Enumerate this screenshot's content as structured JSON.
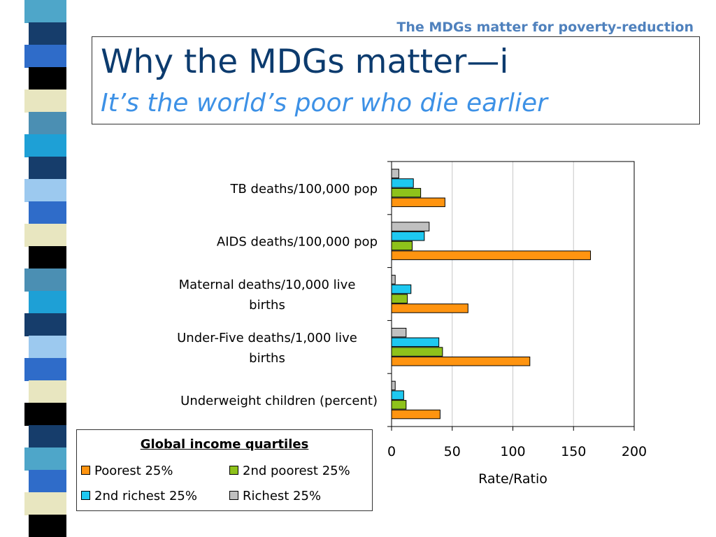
{
  "header": "The MDGs matter for poverty-reduction",
  "title": "Why the MDGs matter—i",
  "subtitle": "It’s the world’s poor who die earlier",
  "colors": {
    "stripe": [
      "#4ea6c9",
      "#163d6b",
      "#2f6cc9",
      "#000000",
      "#e8e6c0",
      "#4b8fb3",
      "#1ea0d6",
      "#163d6b",
      "#9cc9ef",
      "#2f6cc9",
      "#e8e6c0",
      "#000000",
      "#4b8fb3",
      "#1ea0d6",
      "#163d6b",
      "#9cc9ef",
      "#2f6cc9",
      "#e8e6c0",
      "#000000",
      "#163d6b",
      "#4ea6c9",
      "#2f6cc9",
      "#e8e6c0",
      "#000000"
    ]
  },
  "chart_data": {
    "type": "bar",
    "orientation": "horizontal",
    "categories": [
      "TB deaths/100,000 pop",
      "AIDS deaths/100,000 pop",
      "Maternal deaths/10,000 live births",
      "Under-Five deaths/1,000 live births",
      "Underweight children (percent)"
    ],
    "series": [
      {
        "name": "Richest 25%",
        "color": "#c0c0c0",
        "values": [
          6,
          31,
          3,
          12,
          3
        ]
      },
      {
        "name": "2nd richest 25%",
        "color": "#1ec8f0",
        "values": [
          18,
          27,
          16,
          39,
          10
        ]
      },
      {
        "name": "2nd poorest 25%",
        "color": "#8ec21b",
        "values": [
          24,
          17,
          13,
          42,
          12
        ]
      },
      {
        "name": "Poorest 25%",
        "color": "#ff9410",
        "values": [
          44,
          164,
          63,
          114,
          40
        ]
      }
    ],
    "xlabel": "Rate/Ratio",
    "xlim": [
      0,
      200
    ],
    "xticks": [
      0,
      50,
      100,
      150,
      200
    ],
    "grid": true,
    "legend": {
      "title": "Global income quartiles",
      "placement": "bottom-left",
      "order": [
        "Poorest 25%",
        "2nd poorest 25%",
        "2nd richest 25%",
        "Richest 25%"
      ]
    }
  }
}
